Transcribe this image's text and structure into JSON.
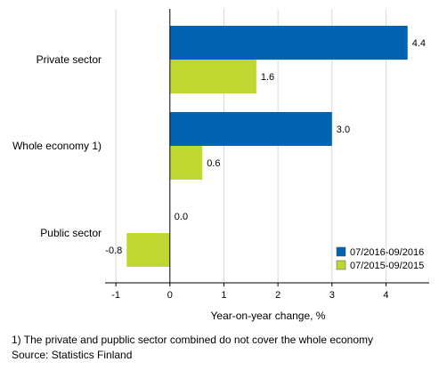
{
  "chart_data": {
    "type": "bar",
    "orientation": "horizontal",
    "categories": [
      "Private sector",
      "Whole economy 1)",
      "Public sector"
    ],
    "series": [
      {
        "name": "07/2016-09/2016",
        "color": "#0063b2",
        "values": [
          4.4,
          3.0,
          0.0
        ],
        "labels": [
          "4.4",
          "3.0",
          "0.0"
        ]
      },
      {
        "name": "07/2015-09/2015",
        "color": "#bfd730",
        "values": [
          1.6,
          0.6,
          -0.8
        ],
        "labels": [
          "1.6",
          "0.6",
          "-0.8"
        ]
      }
    ],
    "xlabel": "Year-on-year change, %",
    "xlim": [
      -1.2,
      4.8
    ],
    "xticks": [
      -1,
      0,
      1,
      2,
      3,
      4
    ],
    "xtick_labels": [
      "-1",
      "0",
      "1",
      "2",
      "3",
      "4"
    ],
    "grid": "vertical",
    "legend_position": "bottom-right"
  },
  "footnote": "1) The private and pupblic sector combined do not cover the whole economy",
  "source": "Source: Statistics Finland"
}
